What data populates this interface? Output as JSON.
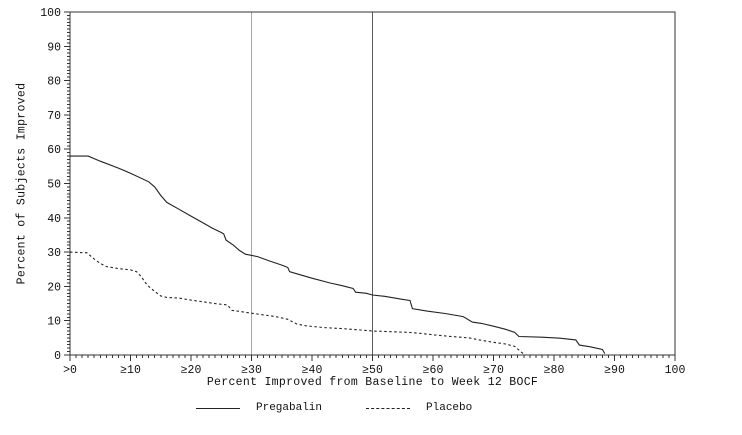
{
  "chart_data": {
    "type": "line",
    "title": "",
    "xlabel": "Percent Improved from Baseline to Week 12 BOCF",
    "ylabel": "Percent of Subjects Improved",
    "xlim": [
      0,
      100
    ],
    "ylim": [
      0,
      100
    ],
    "x_tick_values": [
      0,
      10,
      20,
      30,
      40,
      50,
      60,
      70,
      80,
      90,
      100
    ],
    "x_tick_labels": [
      ">0",
      "≥10",
      "≥20",
      "≥30",
      "≥40",
      "≥50",
      "≥60",
      "≥70",
      "≥80",
      "≥90",
      "100"
    ],
    "y_tick_values": [
      0,
      10,
      20,
      30,
      40,
      50,
      60,
      70,
      80,
      90,
      100
    ],
    "minor_tick_step": 1,
    "grid": false,
    "frame": true,
    "legend_position": "bottom",
    "axis_color": "#333333",
    "reference_lines": [
      {
        "x": 30,
        "color": "#a6a6a6"
      },
      {
        "x": 50,
        "color": "#5c5c5c"
      }
    ],
    "series": [
      {
        "name": "Pregabalin",
        "style": "solid",
        "color": "#222222",
        "points": [
          [
            0,
            58
          ],
          [
            3,
            58
          ],
          [
            5,
            56.5
          ],
          [
            8,
            54.5
          ],
          [
            10,
            53
          ],
          [
            13,
            50.5
          ],
          [
            14,
            49
          ],
          [
            15,
            46.5
          ],
          [
            16,
            44.5
          ],
          [
            18,
            42.5
          ],
          [
            20,
            40.5
          ],
          [
            22,
            38.5
          ],
          [
            23.5,
            37
          ],
          [
            25,
            35.7
          ],
          [
            25.4,
            35.3
          ],
          [
            25.8,
            33.5
          ],
          [
            27,
            32
          ],
          [
            28,
            30.5
          ],
          [
            29,
            29.4
          ],
          [
            31,
            28.7
          ],
          [
            33,
            27.4
          ],
          [
            35,
            26.2
          ],
          [
            36,
            25.5
          ],
          [
            36.3,
            24.3
          ],
          [
            38,
            23.4
          ],
          [
            40,
            22.4
          ],
          [
            43,
            21
          ],
          [
            45,
            20.2
          ],
          [
            46.8,
            19.4
          ],
          [
            47.2,
            18.3
          ],
          [
            49,
            18
          ],
          [
            50,
            17.5
          ],
          [
            52,
            17.1
          ],
          [
            55,
            16.2
          ],
          [
            56.2,
            15.9
          ],
          [
            56.6,
            13.5
          ],
          [
            59,
            12.8
          ],
          [
            62,
            12.1
          ],
          [
            65,
            11.2
          ],
          [
            66.5,
            9.6
          ],
          [
            68,
            9.2
          ],
          [
            70,
            8.4
          ],
          [
            72,
            7.5
          ],
          [
            73.5,
            6.6
          ],
          [
            74.2,
            5.4
          ],
          [
            78,
            5.2
          ],
          [
            81,
            4.9
          ],
          [
            83.6,
            4.4
          ],
          [
            84.2,
            2.9
          ],
          [
            86,
            2.4
          ],
          [
            88,
            1.6
          ],
          [
            88.4,
            0.4
          ]
        ]
      },
      {
        "name": "Placebo",
        "style": "dashed",
        "color": "#222222",
        "points": [
          [
            0,
            30
          ],
          [
            2.8,
            29.8
          ],
          [
            4,
            28
          ],
          [
            5,
            26.7
          ],
          [
            6,
            25.8
          ],
          [
            8,
            25.2
          ],
          [
            10,
            24.8
          ],
          [
            11,
            24.3
          ],
          [
            11.8,
            22.8
          ],
          [
            12.5,
            21
          ],
          [
            13,
            20
          ],
          [
            14,
            18.5
          ],
          [
            15,
            17.2
          ],
          [
            16,
            16.8
          ],
          [
            18,
            16.6
          ],
          [
            20,
            16
          ],
          [
            22,
            15.5
          ],
          [
            24,
            15
          ],
          [
            26,
            14.6
          ],
          [
            26.8,
            13
          ],
          [
            28,
            12.7
          ],
          [
            30,
            12.2
          ],
          [
            32,
            11.7
          ],
          [
            34,
            11.2
          ],
          [
            36,
            10.4
          ],
          [
            37.5,
            9
          ],
          [
            39,
            8.5
          ],
          [
            42,
            8
          ],
          [
            45,
            7.7
          ],
          [
            48,
            7.3
          ],
          [
            50,
            7
          ],
          [
            53,
            6.8
          ],
          [
            56,
            6.6
          ],
          [
            58,
            6.3
          ],
          [
            60,
            5.9
          ],
          [
            63,
            5.4
          ],
          [
            66,
            5
          ],
          [
            68,
            4.3
          ],
          [
            70,
            3.7
          ],
          [
            72,
            3.2
          ],
          [
            73.5,
            2.5
          ],
          [
            74.5,
            1
          ],
          [
            75,
            0.3
          ]
        ]
      }
    ]
  }
}
